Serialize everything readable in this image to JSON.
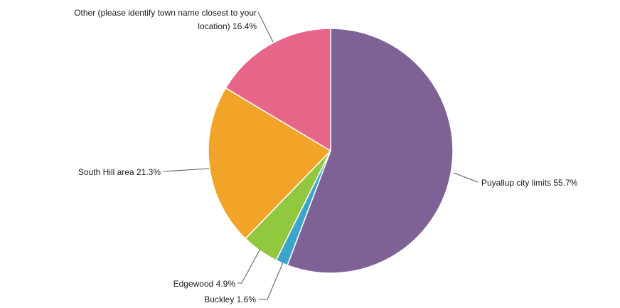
{
  "chart_data": {
    "type": "pie",
    "slices": [
      {
        "label": "Puyallup city limits 55.7%",
        "name": "Puyallup city limits",
        "value": 55.7,
        "color": "#7E6195"
      },
      {
        "label": "Buckley 1.6%",
        "name": "Buckley",
        "value": 1.6,
        "color": "#3BA5CC"
      },
      {
        "label": "Edgewood 4.9%",
        "name": "Edgewood",
        "value": 4.9,
        "color": "#92C83E"
      },
      {
        "label": "South Hill area 21.3%",
        "name": "South Hill area",
        "value": 21.3,
        "color": "#F2A428"
      },
      {
        "label_lines": [
          "Other (please identify town name closest to your",
          "location) 16.4%"
        ],
        "name": "Other (please identify town name closest to your location)",
        "value": 16.4,
        "color": "#E8658A"
      }
    ],
    "start": "top",
    "direction": "clockwise"
  }
}
